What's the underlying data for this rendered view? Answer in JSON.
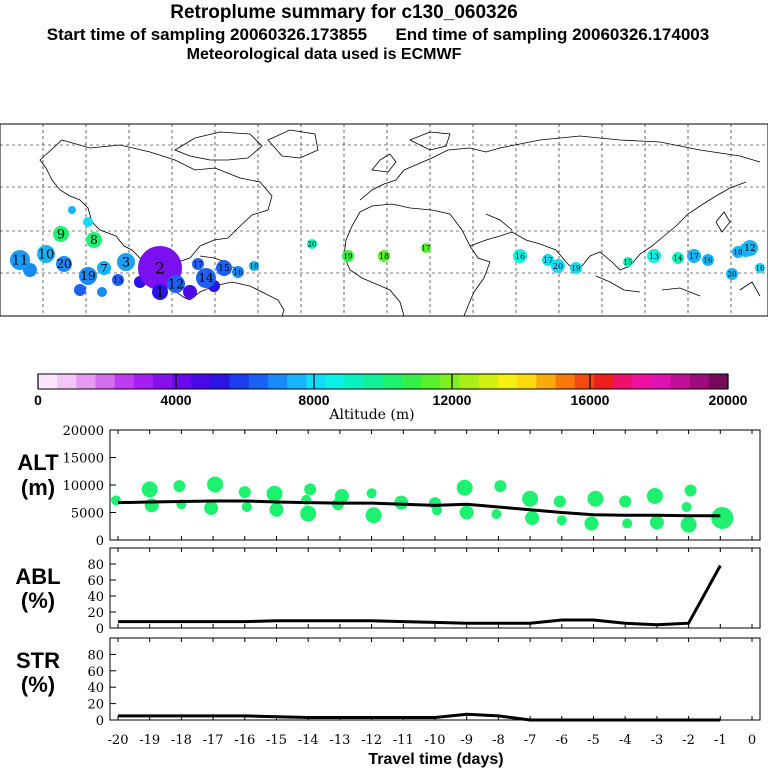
{
  "header": {
    "title": "Retroplume summary for c130_060326",
    "sampling": "Start time of sampling 20060326.173855      End time of sampling 20060326.174003",
    "met": "Meteorological data used is ECMWF"
  },
  "colorbar": {
    "ticks": [
      "0",
      "4000",
      "8000",
      "12000",
      "16000",
      "20000"
    ],
    "label": "Altitude (m)",
    "colors": [
      "#fbe6fb",
      "#f2c6f6",
      "#e59cf0",
      "#d26eec",
      "#bf3df0",
      "#a51ff0",
      "#8710f0",
      "#6a08ee",
      "#4a07e8",
      "#2a14e6",
      "#1c3cf0",
      "#1a62f5",
      "#1a8af8",
      "#18b4fb",
      "#12dcfa",
      "#0af0e6",
      "#0af2c0",
      "#10f096",
      "#1ef070",
      "#36f04a",
      "#58f02c",
      "#82f020",
      "#aaf018",
      "#d2f010",
      "#f4f010",
      "#fada0c",
      "#faaa0a",
      "#f8780a",
      "#f24a12",
      "#ec1e1e",
      "#f0106a",
      "#f010a0",
      "#e010b4",
      "#c01098",
      "#9c0c7c",
      "#780a5c"
    ]
  },
  "map": {
    "labels": [
      "11",
      "10",
      "9",
      "8",
      "20",
      "19",
      "7",
      "3",
      "2",
      "1",
      "12",
      "14",
      "15",
      "16",
      "18",
      "17",
      "13",
      "20",
      "19",
      "18",
      "17",
      "16",
      "17",
      "20",
      "19",
      "15",
      "13",
      "14",
      "16",
      "17",
      "20",
      "19",
      "18",
      "16",
      "12"
    ]
  },
  "chart_data": [
    {
      "type": "scatter",
      "name": "ALT",
      "ylabel": "ALT\n(m)",
      "ylim": [
        0,
        20000
      ],
      "yticks": [
        "20000",
        "15000",
        "10000",
        "5000",
        "0"
      ],
      "x": [
        -20,
        -19,
        -18,
        -17,
        -16,
        -15,
        -14,
        -13,
        -12,
        -11,
        -10,
        -9,
        -8,
        -7,
        -6,
        -5,
        -4,
        -3,
        -2,
        -1
      ],
      "line_values": [
        6800,
        6900,
        7000,
        7100,
        7100,
        6900,
        6800,
        6700,
        6700,
        6500,
        6300,
        6500,
        6000,
        5500,
        5000,
        4600,
        4500,
        4500,
        4400,
        4400
      ],
      "points": [
        [
          -20,
          7200
        ],
        [
          -19,
          9200
        ],
        [
          -19,
          6300
        ],
        [
          -18,
          9800
        ],
        [
          -18,
          6500
        ],
        [
          -17,
          10100
        ],
        [
          -17,
          5800
        ],
        [
          -16,
          8700
        ],
        [
          -16,
          6000
        ],
        [
          -15,
          8400
        ],
        [
          -15,
          5500
        ],
        [
          -14,
          9200
        ],
        [
          -14,
          7300
        ],
        [
          -14,
          4800
        ],
        [
          -13,
          8000
        ],
        [
          -13,
          6500
        ],
        [
          -12,
          8500
        ],
        [
          -12,
          4500
        ],
        [
          -11,
          6800
        ],
        [
          -10,
          6700
        ],
        [
          -10,
          5400
        ],
        [
          -9,
          9500
        ],
        [
          -9,
          5000
        ],
        [
          -8,
          9800
        ],
        [
          -8,
          4700
        ],
        [
          -7,
          7500
        ],
        [
          -7,
          4000
        ],
        [
          -6,
          7000
        ],
        [
          -6,
          3600
        ],
        [
          -5,
          7500
        ],
        [
          -5,
          3000
        ],
        [
          -4,
          7000
        ],
        [
          -4,
          3000
        ],
        [
          -3,
          8000
        ],
        [
          -3,
          3200
        ],
        [
          -2,
          9000
        ],
        [
          -2,
          6000
        ],
        [
          -2,
          2800
        ],
        [
          -1,
          4000
        ]
      ]
    },
    {
      "type": "line",
      "name": "ABL",
      "ylabel": "ABL\n(%)",
      "ylim": [
        0,
        100
      ],
      "yticks": [
        "80",
        "60",
        "40",
        "20",
        "0"
      ],
      "x": [
        -20,
        -19,
        -18,
        -17,
        -16,
        -15,
        -14,
        -13,
        -12,
        -11,
        -10,
        -9,
        -8,
        -7,
        -6,
        -5,
        -4,
        -3,
        -2,
        -1
      ],
      "values": [
        8,
        8,
        8,
        8,
        8,
        9,
        9,
        9,
        9,
        8,
        7,
        6,
        6,
        6,
        10,
        10,
        6,
        4,
        6,
        78
      ]
    },
    {
      "type": "line",
      "name": "STR",
      "ylabel": "STR\n(%)",
      "ylim": [
        0,
        100
      ],
      "yticks": [
        "80",
        "60",
        "40",
        "20",
        "0"
      ],
      "x": [
        -20,
        -19,
        -18,
        -17,
        -16,
        -15,
        -14,
        -13,
        -12,
        -11,
        -10,
        -9,
        -8,
        -7,
        -6,
        -5,
        -4,
        -3,
        -2,
        -1
      ],
      "values": [
        5,
        5,
        5,
        5,
        5,
        4,
        3,
        3,
        3,
        3,
        3,
        7,
        5,
        0,
        0,
        0,
        0,
        0,
        0,
        0
      ],
      "xticks": [
        "-20",
        "-19",
        "-18",
        "-17",
        "-16",
        "-15",
        "-14",
        "-13",
        "-12",
        "-11",
        "-10",
        "-9",
        "-8",
        "-7",
        "-6",
        "-5",
        "-4",
        "-3",
        "-2",
        "-1",
        "0"
      ],
      "xlabel": "Travel time (days)"
    }
  ]
}
